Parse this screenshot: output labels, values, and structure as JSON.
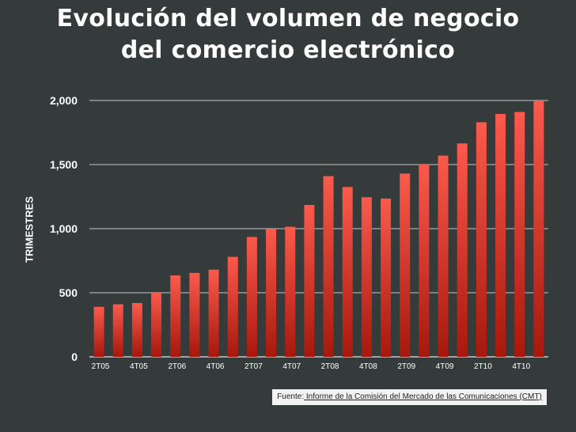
{
  "title_lines": [
    "Evolución del volumen de negocio",
    "del comercio electrónico"
  ],
  "source": {
    "prefix": "Fuente:",
    "text": " Informe de la Comisión del Mercado de las Comunicaciones (CMT)"
  },
  "colors": {
    "background": "#353a3b",
    "bar_top": "#fb5a4c",
    "bar_bottom": "#a7180c",
    "grid": "#c8c8c8"
  },
  "chart_data": {
    "type": "bar",
    "title": "Evolución del volumen de negocio del comercio electrónico",
    "xlabel": "",
    "ylabel": "TRIMESTRES",
    "ylim": [
      0,
      2000
    ],
    "yticks": [
      0,
      500,
      1000,
      1500,
      2000
    ],
    "ytick_labels": [
      "0",
      "500",
      "1,000",
      "1,500",
      "2,000"
    ],
    "grid": true,
    "categories": [
      "2T05",
      "3T05",
      "4T05",
      "1T06",
      "2T06",
      "3T06",
      "4T06",
      "1T07",
      "2T07",
      "3T07",
      "4T07",
      "1T08",
      "2T08",
      "3T08",
      "4T08",
      "1T09",
      "2T09",
      "3T09",
      "4T09",
      "1T10",
      "2T10",
      "3T10",
      "4T10",
      "1T11"
    ],
    "xtick_labels": [
      "2T05",
      "",
      "4T05",
      "",
      "2T06",
      "",
      "4T06",
      "",
      "2T07",
      "",
      "4T07",
      "",
      "2T08",
      "",
      "4T08",
      "",
      "2T09",
      "",
      "4T09",
      "",
      "2T10",
      "",
      "4T10",
      ""
    ],
    "values": [
      390,
      410,
      420,
      500,
      635,
      655,
      680,
      780,
      935,
      995,
      1015,
      1185,
      1410,
      1325,
      1245,
      1235,
      1430,
      1505,
      1570,
      1665,
      1830,
      1895,
      1910,
      2000
    ]
  }
}
